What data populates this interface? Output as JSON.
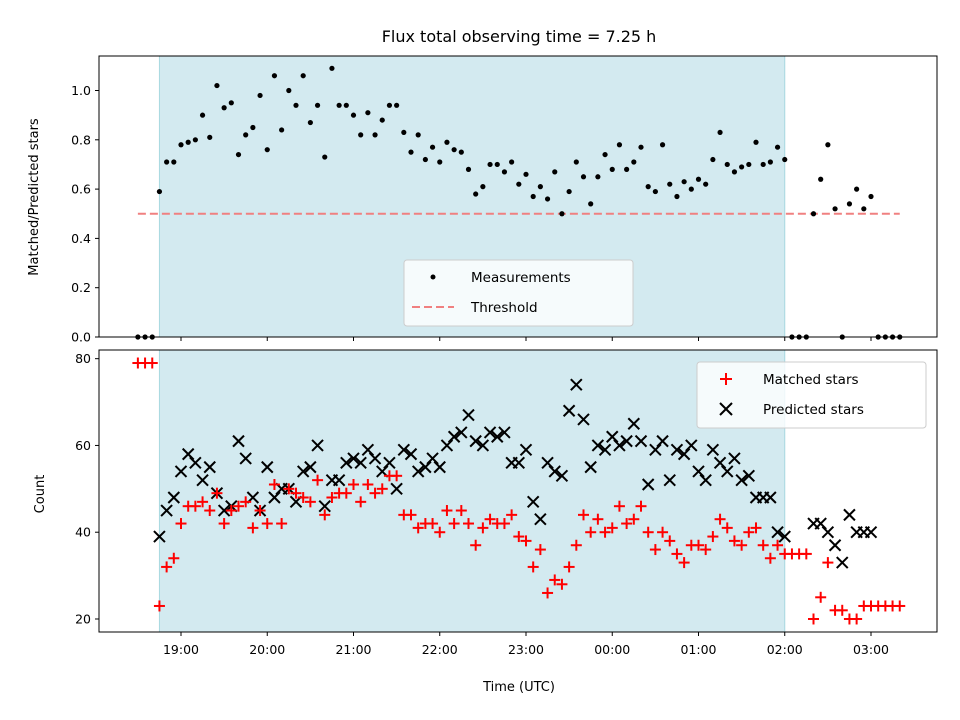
{
  "chart_data": [
    {
      "type": "scatter",
      "title": "Flux total observing time = 7.25 h",
      "xlabel": "",
      "ylabel": "Matched/Predicted stars",
      "ylim": [
        0,
        1.14
      ],
      "yticks": [
        "0.0",
        "0.2",
        "0.4",
        "0.6",
        "0.8",
        "1.0"
      ],
      "shaded_interval": [
        "18:45",
        "02:00"
      ],
      "shade_color": "#d3eaf0",
      "legend": "lower-center",
      "threshold": {
        "name": "Threshold",
        "value": 0.5,
        "color": "#f08080"
      },
      "series": [
        {
          "name": "Measurements",
          "color": "#000000",
          "x": [
            "18:30",
            "18:35",
            "18:40",
            "18:45",
            "18:50",
            "18:55",
            "19:00",
            "19:05",
            "19:10",
            "19:15",
            "19:20",
            "19:25",
            "19:30",
            "19:35",
            "19:40",
            "19:45",
            "19:50",
            "19:55",
            "20:00",
            "20:05",
            "20:10",
            "20:15",
            "20:20",
            "20:25",
            "20:30",
            "20:35",
            "20:40",
            "20:45",
            "20:50",
            "20:55",
            "21:00",
            "21:05",
            "21:10",
            "21:15",
            "21:20",
            "21:25",
            "21:30",
            "21:35",
            "21:40",
            "21:45",
            "21:50",
            "21:55",
            "22:00",
            "22:05",
            "22:10",
            "22:15",
            "22:20",
            "22:25",
            "22:30",
            "22:35",
            "22:40",
            "22:45",
            "22:50",
            "22:55",
            "23:00",
            "23:05",
            "23:10",
            "23:15",
            "23:20",
            "23:25",
            "23:30",
            "23:35",
            "23:40",
            "23:45",
            "23:50",
            "23:55",
            "00:00",
            "00:05",
            "00:10",
            "00:15",
            "00:20",
            "00:25",
            "00:30",
            "00:35",
            "00:40",
            "00:45",
            "00:50",
            "00:55",
            "01:00",
            "01:05",
            "01:10",
            "01:15",
            "01:20",
            "01:25",
            "01:30",
            "01:35",
            "01:40",
            "01:45",
            "01:50",
            "01:55",
            "02:00",
            "02:05",
            "02:10",
            "02:15",
            "02:20",
            "02:25",
            "02:30",
            "02:35",
            "02:40",
            "02:45",
            "02:50",
            "02:55",
            "03:00",
            "03:05",
            "03:10",
            "03:15",
            "03:20"
          ],
          "y": [
            0,
            0,
            0,
            0.59,
            0.71,
            0.71,
            0.78,
            0.79,
            0.8,
            0.9,
            0.81,
            1.02,
            0.93,
            0.95,
            0.74,
            0.82,
            0.85,
            0.98,
            0.76,
            1.06,
            0.84,
            1.0,
            0.94,
            1.06,
            0.87,
            0.94,
            0.73,
            1.09,
            0.94,
            0.94,
            0.9,
            0.82,
            0.91,
            0.82,
            0.88,
            0.94,
            0.94,
            0.83,
            0.75,
            0.82,
            0.72,
            0.77,
            0.71,
            0.79,
            0.76,
            0.75,
            0.68,
            0.58,
            0.61,
            0.7,
            0.7,
            0.67,
            0.71,
            0.62,
            0.66,
            0.57,
            0.61,
            0.56,
            0.67,
            0.5,
            0.59,
            0.71,
            0.65,
            0.54,
            0.65,
            0.74,
            0.68,
            0.78,
            0.68,
            0.71,
            0.77,
            0.61,
            0.59,
            0.78,
            0.62,
            0.57,
            0.63,
            0.6,
            0.64,
            0.62,
            0.72,
            0.83,
            0.7,
            0.67,
            0.69,
            0.7,
            0.79,
            0.7,
            0.71,
            0.77,
            0.72,
            0,
            0,
            0,
            0.5,
            0.64,
            0.78,
            0.52,
            0,
            0.54,
            0.6,
            0.52,
            0.57,
            0,
            0,
            0,
            0
          ]
        }
      ]
    },
    {
      "type": "scatter",
      "title": "",
      "xlabel": "Time (UTC)",
      "ylabel": "Count",
      "ylim": [
        17,
        82
      ],
      "yticks": [
        "20",
        "40",
        "60",
        "80"
      ],
      "xticks": [
        "19:00",
        "20:00",
        "21:00",
        "22:00",
        "23:00",
        "00:00",
        "01:00",
        "02:00",
        "03:00"
      ],
      "shaded_interval": [
        "18:45",
        "02:00"
      ],
      "shade_color": "#d3eaf0",
      "legend": "top-right",
      "series": [
        {
          "name": "Matched stars",
          "marker": "+",
          "color": "#ff0000",
          "x": [
            "18:30",
            "18:35",
            "18:40",
            "18:45",
            "18:50",
            "18:55",
            "19:00",
            "19:05",
            "19:10",
            "19:15",
            "19:20",
            "19:25",
            "19:30",
            "19:35",
            "19:40",
            "19:45",
            "19:50",
            "19:55",
            "20:00",
            "20:05",
            "20:10",
            "20:15",
            "20:20",
            "20:25",
            "20:30",
            "20:35",
            "20:40",
            "20:45",
            "20:50",
            "20:55",
            "21:00",
            "21:05",
            "21:10",
            "21:15",
            "21:20",
            "21:25",
            "21:30",
            "21:35",
            "21:40",
            "21:45",
            "21:50",
            "21:55",
            "22:00",
            "22:05",
            "22:10",
            "22:15",
            "22:20",
            "22:25",
            "22:30",
            "22:35",
            "22:40",
            "22:45",
            "22:50",
            "22:55",
            "23:00",
            "23:05",
            "23:10",
            "23:15",
            "23:20",
            "23:25",
            "23:30",
            "23:35",
            "23:40",
            "23:45",
            "23:50",
            "23:55",
            "00:00",
            "00:05",
            "00:10",
            "00:15",
            "00:20",
            "00:25",
            "00:30",
            "00:35",
            "00:40",
            "00:45",
            "00:50",
            "00:55",
            "01:00",
            "01:05",
            "01:10",
            "01:15",
            "01:20",
            "01:25",
            "01:30",
            "01:35",
            "01:40",
            "01:45",
            "01:50",
            "01:55",
            "02:00",
            "02:05",
            "02:10",
            "02:15",
            "02:20",
            "02:25",
            "02:30",
            "02:35",
            "02:40",
            "02:45",
            "02:50",
            "02:55",
            "03:00",
            "03:05",
            "03:10",
            "03:15",
            "03:20"
          ],
          "y": [
            79,
            79,
            79,
            23,
            32,
            34,
            42,
            46,
            46,
            47,
            45,
            49,
            42,
            45,
            46,
            47,
            41,
            45,
            42,
            51,
            42,
            50,
            49,
            48,
            47,
            52,
            44,
            48,
            49,
            49,
            51,
            47,
            51,
            49,
            50,
            53,
            53,
            44,
            44,
            41,
            42,
            42,
            40,
            45,
            42,
            45,
            42,
            37,
            41,
            43,
            42,
            42,
            44,
            39,
            38,
            32,
            36,
            26,
            29,
            28,
            32,
            37,
            44,
            40,
            43,
            40,
            41,
            46,
            42,
            43,
            46,
            40,
            36,
            40,
            38,
            35,
            33,
            37,
            37,
            36,
            39,
            43,
            41,
            38,
            37,
            40,
            41,
            37,
            34,
            37,
            35,
            35,
            35,
            35,
            20,
            25,
            33,
            22,
            22,
            20,
            20,
            23,
            23,
            23,
            23,
            23,
            23
          ]
        },
        {
          "name": "Predicted stars",
          "marker": "x",
          "color": "#000000",
          "x": [
            "18:45",
            "18:50",
            "18:55",
            "19:00",
            "19:05",
            "19:10",
            "19:15",
            "19:20",
            "19:25",
            "19:30",
            "19:35",
            "19:40",
            "19:45",
            "19:50",
            "19:55",
            "20:00",
            "20:05",
            "20:10",
            "20:15",
            "20:20",
            "20:25",
            "20:30",
            "20:35",
            "20:40",
            "20:45",
            "20:50",
            "20:55",
            "21:00",
            "21:05",
            "21:10",
            "21:15",
            "21:20",
            "21:25",
            "21:30",
            "21:35",
            "21:40",
            "21:45",
            "21:50",
            "21:55",
            "22:00",
            "22:05",
            "22:10",
            "22:15",
            "22:20",
            "22:25",
            "22:30",
            "22:35",
            "22:40",
            "22:45",
            "22:50",
            "22:55",
            "23:00",
            "23:05",
            "23:10",
            "23:15",
            "23:20",
            "23:25",
            "23:30",
            "23:35",
            "23:40",
            "23:45",
            "23:50",
            "23:55",
            "00:00",
            "00:05",
            "00:10",
            "00:15",
            "00:20",
            "00:25",
            "00:30",
            "00:35",
            "00:40",
            "00:45",
            "00:50",
            "00:55",
            "01:00",
            "01:05",
            "01:10",
            "01:15",
            "01:20",
            "01:25",
            "01:30",
            "01:35",
            "01:40",
            "01:45",
            "01:50",
            "01:55",
            "02:00",
            "02:20",
            "02:25",
            "02:30",
            "02:35",
            "02:40",
            "02:45",
            "02:50",
            "02:55",
            "03:00"
          ],
          "y": [
            39,
            45,
            48,
            54,
            58,
            56,
            52,
            55,
            49,
            45,
            46,
            61,
            57,
            48,
            45,
            55,
            48,
            50,
            50,
            47,
            54,
            55,
            60,
            46,
            52,
            52,
            56,
            57,
            56,
            59,
            57,
            54,
            56,
            50,
            59,
            58,
            54,
            55,
            57,
            55,
            60,
            62,
            63,
            67,
            61,
            60,
            63,
            62,
            63,
            56,
            56,
            59,
            47,
            43,
            56,
            54,
            53,
            68,
            74,
            66,
            55,
            60,
            59,
            62,
            60,
            61,
            65,
            61,
            51,
            59,
            61,
            52,
            59,
            58,
            60,
            54,
            52,
            59,
            56,
            54,
            57,
            52,
            53,
            48,
            48,
            48,
            40,
            39,
            42,
            42,
            40,
            37,
            33,
            44,
            40,
            40,
            40
          ]
        }
      ]
    }
  ]
}
